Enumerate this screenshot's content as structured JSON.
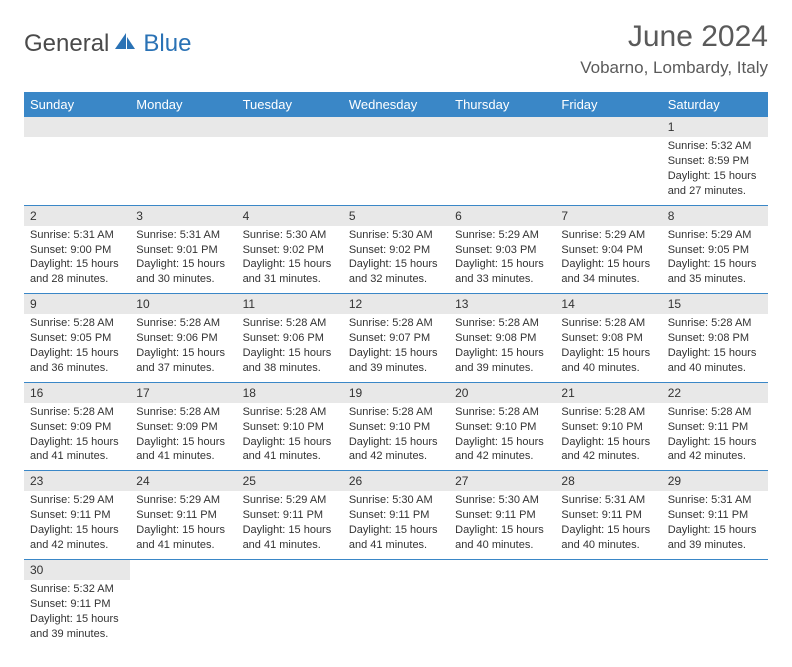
{
  "brand": {
    "part1": "General",
    "part2": "Blue"
  },
  "title": "June 2024",
  "location": "Vobarno, Lombardy, Italy",
  "colors": {
    "header_bg": "#3a87c7",
    "header_text": "#ffffff",
    "daynum_bg": "#e8e8e8",
    "row_border": "#3a87c7",
    "text": "#333333",
    "brand_gray": "#4a4a4a",
    "brand_blue": "#2a72b5"
  },
  "weekdays": [
    "Sunday",
    "Monday",
    "Tuesday",
    "Wednesday",
    "Thursday",
    "Friday",
    "Saturday"
  ],
  "weeks": [
    [
      null,
      null,
      null,
      null,
      null,
      null,
      {
        "n": "1",
        "sr": "5:32 AM",
        "ss": "8:59 PM",
        "dl": "15 hours and 27 minutes."
      }
    ],
    [
      {
        "n": "2",
        "sr": "5:31 AM",
        "ss": "9:00 PM",
        "dl": "15 hours and 28 minutes."
      },
      {
        "n": "3",
        "sr": "5:31 AM",
        "ss": "9:01 PM",
        "dl": "15 hours and 30 minutes."
      },
      {
        "n": "4",
        "sr": "5:30 AM",
        "ss": "9:02 PM",
        "dl": "15 hours and 31 minutes."
      },
      {
        "n": "5",
        "sr": "5:30 AM",
        "ss": "9:02 PM",
        "dl": "15 hours and 32 minutes."
      },
      {
        "n": "6",
        "sr": "5:29 AM",
        "ss": "9:03 PM",
        "dl": "15 hours and 33 minutes."
      },
      {
        "n": "7",
        "sr": "5:29 AM",
        "ss": "9:04 PM",
        "dl": "15 hours and 34 minutes."
      },
      {
        "n": "8",
        "sr": "5:29 AM",
        "ss": "9:05 PM",
        "dl": "15 hours and 35 minutes."
      }
    ],
    [
      {
        "n": "9",
        "sr": "5:28 AM",
        "ss": "9:05 PM",
        "dl": "15 hours and 36 minutes."
      },
      {
        "n": "10",
        "sr": "5:28 AM",
        "ss": "9:06 PM",
        "dl": "15 hours and 37 minutes."
      },
      {
        "n": "11",
        "sr": "5:28 AM",
        "ss": "9:06 PM",
        "dl": "15 hours and 38 minutes."
      },
      {
        "n": "12",
        "sr": "5:28 AM",
        "ss": "9:07 PM",
        "dl": "15 hours and 39 minutes."
      },
      {
        "n": "13",
        "sr": "5:28 AM",
        "ss": "9:08 PM",
        "dl": "15 hours and 39 minutes."
      },
      {
        "n": "14",
        "sr": "5:28 AM",
        "ss": "9:08 PM",
        "dl": "15 hours and 40 minutes."
      },
      {
        "n": "15",
        "sr": "5:28 AM",
        "ss": "9:08 PM",
        "dl": "15 hours and 40 minutes."
      }
    ],
    [
      {
        "n": "16",
        "sr": "5:28 AM",
        "ss": "9:09 PM",
        "dl": "15 hours and 41 minutes."
      },
      {
        "n": "17",
        "sr": "5:28 AM",
        "ss": "9:09 PM",
        "dl": "15 hours and 41 minutes."
      },
      {
        "n": "18",
        "sr": "5:28 AM",
        "ss": "9:10 PM",
        "dl": "15 hours and 41 minutes."
      },
      {
        "n": "19",
        "sr": "5:28 AM",
        "ss": "9:10 PM",
        "dl": "15 hours and 42 minutes."
      },
      {
        "n": "20",
        "sr": "5:28 AM",
        "ss": "9:10 PM",
        "dl": "15 hours and 42 minutes."
      },
      {
        "n": "21",
        "sr": "5:28 AM",
        "ss": "9:10 PM",
        "dl": "15 hours and 42 minutes."
      },
      {
        "n": "22",
        "sr": "5:28 AM",
        "ss": "9:11 PM",
        "dl": "15 hours and 42 minutes."
      }
    ],
    [
      {
        "n": "23",
        "sr": "5:29 AM",
        "ss": "9:11 PM",
        "dl": "15 hours and 42 minutes."
      },
      {
        "n": "24",
        "sr": "5:29 AM",
        "ss": "9:11 PM",
        "dl": "15 hours and 41 minutes."
      },
      {
        "n": "25",
        "sr": "5:29 AM",
        "ss": "9:11 PM",
        "dl": "15 hours and 41 minutes."
      },
      {
        "n": "26",
        "sr": "5:30 AM",
        "ss": "9:11 PM",
        "dl": "15 hours and 41 minutes."
      },
      {
        "n": "27",
        "sr": "5:30 AM",
        "ss": "9:11 PM",
        "dl": "15 hours and 40 minutes."
      },
      {
        "n": "28",
        "sr": "5:31 AM",
        "ss": "9:11 PM",
        "dl": "15 hours and 40 minutes."
      },
      {
        "n": "29",
        "sr": "5:31 AM",
        "ss": "9:11 PM",
        "dl": "15 hours and 39 minutes."
      }
    ],
    [
      {
        "n": "30",
        "sr": "5:32 AM",
        "ss": "9:11 PM",
        "dl": "15 hours and 39 minutes."
      },
      null,
      null,
      null,
      null,
      null,
      null
    ]
  ],
  "labels": {
    "sunrise": "Sunrise: ",
    "sunset": "Sunset: ",
    "daylight": "Daylight: "
  }
}
